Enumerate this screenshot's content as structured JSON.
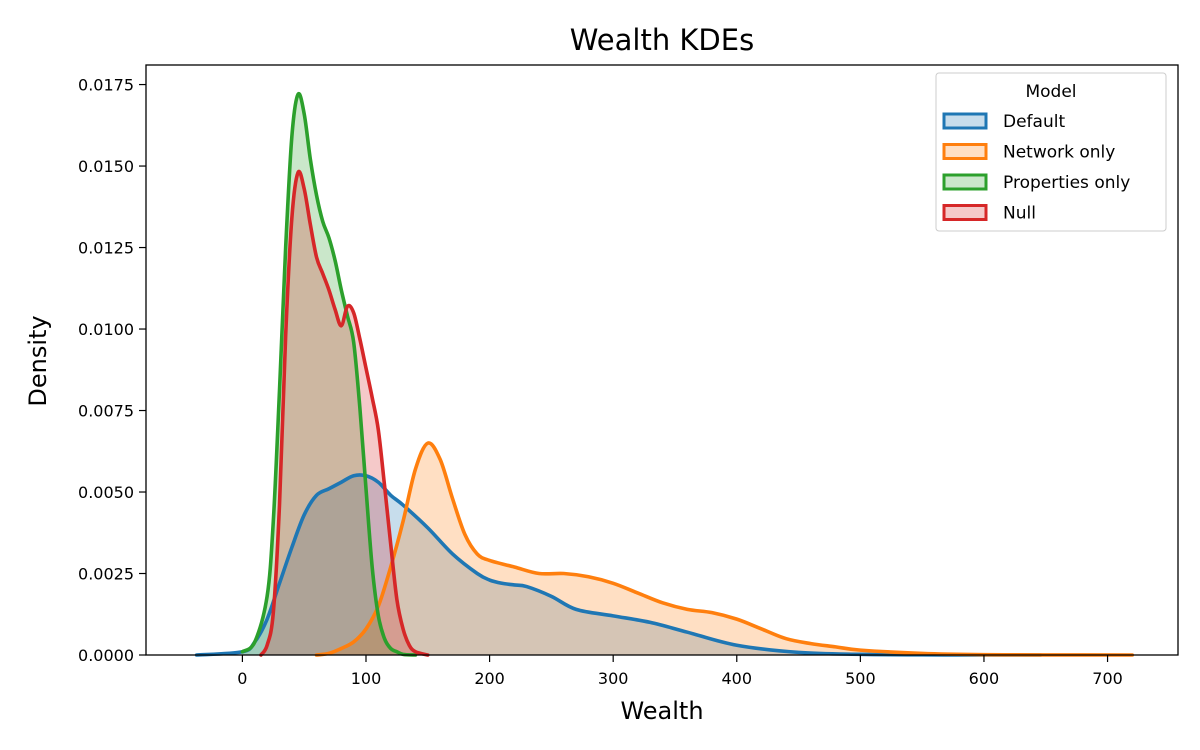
{
  "chart_data": {
    "type": "area",
    "title": "Wealth KDEs",
    "xlabel": "Wealth",
    "ylabel": "Density",
    "xlim": [
      -78,
      757
    ],
    "ylim": [
      0,
      0.0181
    ],
    "x_ticks": [
      0,
      100,
      200,
      300,
      400,
      500,
      600,
      700
    ],
    "x_tick_labels": [
      "0",
      "100",
      "200",
      "300",
      "400",
      "500",
      "600",
      "700"
    ],
    "y_ticks": [
      0,
      0.0025,
      0.005,
      0.0075,
      0.01,
      0.0125,
      0.015,
      0.0175
    ],
    "y_tick_labels": [
      "0.0000",
      "0.0025",
      "0.0050",
      "0.0075",
      "0.0100",
      "0.0125",
      "0.0150",
      "0.0175"
    ],
    "grid": false,
    "legend": {
      "title": "Model",
      "placement": "top-right"
    },
    "series": [
      {
        "name": "Default",
        "color": "#1f77b4",
        "x": [
          -37,
          0,
          10,
          20,
          30,
          40,
          50,
          60,
          70,
          80,
          90,
          100,
          110,
          120,
          130,
          150,
          170,
          190,
          200,
          210,
          220,
          230,
          250,
          270,
          300,
          330,
          360,
          400,
          450,
          500,
          550,
          600,
          646
        ],
        "y": [
          0,
          0.0001,
          0.0004,
          0.0011,
          0.0022,
          0.0033,
          0.0043,
          0.0049,
          0.0051,
          0.0053,
          0.0055,
          0.0055,
          0.0053,
          0.0049,
          0.0046,
          0.0039,
          0.0031,
          0.0025,
          0.0023,
          0.0022,
          0.00215,
          0.0021,
          0.0018,
          0.0014,
          0.0012,
          0.001,
          0.0007,
          0.0003,
          8e-05,
          2e-05,
          5e-06,
          1e-06,
          0
        ]
      },
      {
        "name": "Network only",
        "color": "#ff7f0e",
        "x": [
          60,
          70,
          80,
          90,
          100,
          110,
          120,
          130,
          140,
          150,
          160,
          170,
          180,
          190,
          200,
          220,
          240,
          260,
          280,
          300,
          320,
          340,
          360,
          380,
          400,
          420,
          440,
          460,
          480,
          500,
          550,
          600,
          650,
          720
        ],
        "y": [
          0,
          5e-05,
          0.0002,
          0.0004,
          0.0008,
          0.0015,
          0.0027,
          0.0041,
          0.0057,
          0.0065,
          0.006,
          0.0048,
          0.0037,
          0.0031,
          0.0029,
          0.0027,
          0.0025,
          0.0025,
          0.0024,
          0.0022,
          0.0019,
          0.0016,
          0.0014,
          0.0013,
          0.0011,
          0.0008,
          0.0005,
          0.00035,
          0.00025,
          0.00015,
          5e-05,
          1e-05,
          3e-06,
          0
        ]
      },
      {
        "name": "Properties only",
        "color": "#2ca02c",
        "x": [
          0,
          10,
          20,
          25,
          30,
          35,
          40,
          45,
          50,
          55,
          60,
          65,
          70,
          75,
          80,
          85,
          90,
          95,
          100,
          105,
          110,
          115,
          120,
          125,
          130,
          140
        ],
        "y": [
          0.0001,
          0.0004,
          0.0018,
          0.0041,
          0.0081,
          0.0125,
          0.0159,
          0.0172,
          0.0166,
          0.0152,
          0.0141,
          0.0133,
          0.0128,
          0.0121,
          0.0112,
          0.0104,
          0.0096,
          0.0076,
          0.0051,
          0.0027,
          0.0012,
          0.0005,
          0.0002,
          0.0001,
          2e-05,
          0
        ]
      },
      {
        "name": "Null",
        "color": "#d62728",
        "x": [
          15,
          20,
          25,
          30,
          35,
          40,
          45,
          50,
          55,
          60,
          65,
          70,
          75,
          80,
          85,
          90,
          95,
          100,
          105,
          110,
          115,
          120,
          125,
          130,
          135,
          140,
          150
        ],
        "y": [
          0,
          0.0003,
          0.0013,
          0.0046,
          0.0098,
          0.0134,
          0.0148,
          0.0143,
          0.0132,
          0.0122,
          0.0117,
          0.0112,
          0.0106,
          0.0101,
          0.0107,
          0.0105,
          0.0097,
          0.0088,
          0.0079,
          0.0069,
          0.0052,
          0.0034,
          0.0017,
          0.0008,
          0.0003,
          0.0001,
          0
        ]
      }
    ]
  }
}
